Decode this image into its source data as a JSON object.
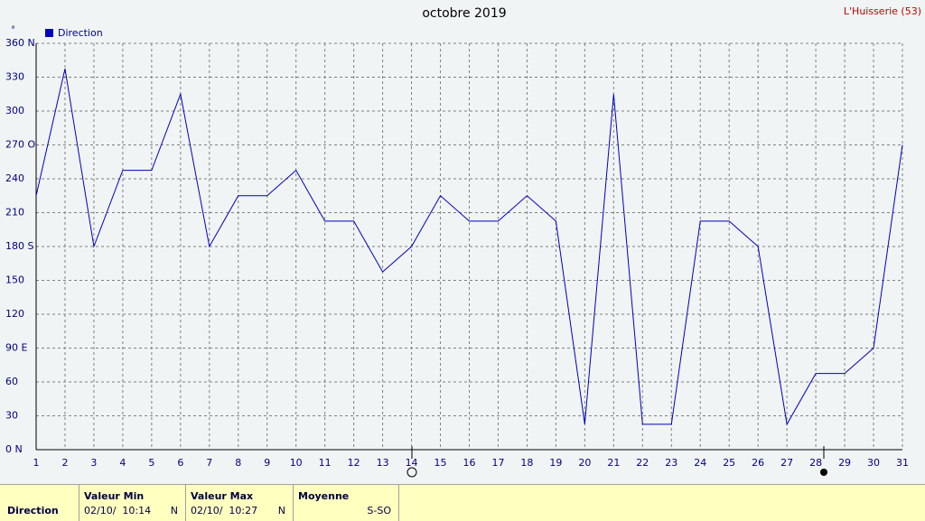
{
  "chart_data": {
    "type": "line",
    "title": "octobre 2019",
    "station": "L'Huisserie (53)",
    "unit": "°",
    "x": [
      1,
      2,
      3,
      4,
      5,
      6,
      7,
      8,
      9,
      10,
      11,
      12,
      13,
      14,
      15,
      16,
      17,
      18,
      19,
      20,
      21,
      22,
      23,
      24,
      25,
      26,
      27,
      28,
      29,
      30,
      31
    ],
    "series": [
      {
        "name": "Direction",
        "color": "#0000c0",
        "values": [
          225,
          337.5,
          180,
          247.5,
          247.5,
          315,
          180,
          225,
          225,
          247.5,
          202.5,
          202.5,
          157.5,
          180,
          225,
          202.5,
          202.5,
          225,
          202.5,
          22.5,
          315,
          22.5,
          22.5,
          202.5,
          202.5,
          180,
          22.5,
          67.5,
          67.5,
          90,
          270
        ]
      }
    ],
    "xlim": [
      1,
      31
    ],
    "xticks": [
      1,
      2,
      3,
      4,
      5,
      6,
      7,
      8,
      9,
      10,
      11,
      12,
      13,
      14,
      15,
      16,
      17,
      18,
      19,
      20,
      21,
      22,
      23,
      24,
      25,
      26,
      27,
      28,
      29,
      30,
      31
    ],
    "ylim": [
      0,
      360
    ],
    "yticks": [
      {
        "value": 0,
        "label": "0  N"
      },
      30,
      60,
      {
        "value": 90,
        "label": "90  E"
      },
      120,
      150,
      {
        "value": 180,
        "label": "180 S"
      },
      210,
      240,
      {
        "value": 270,
        "label": "270 O"
      },
      300,
      330,
      {
        "value": 360,
        "label": "360 N"
      }
    ],
    "grid": true
  },
  "footer": {
    "label": "Direction",
    "columns": [
      {
        "title": "Valeur Min",
        "date": "02/10/  10:14",
        "dir": "N"
      },
      {
        "title": "Valeur Max",
        "date": "02/10/  10:27",
        "dir": "N"
      },
      {
        "title": "Moyenne",
        "dir": "S-SO"
      }
    ]
  }
}
